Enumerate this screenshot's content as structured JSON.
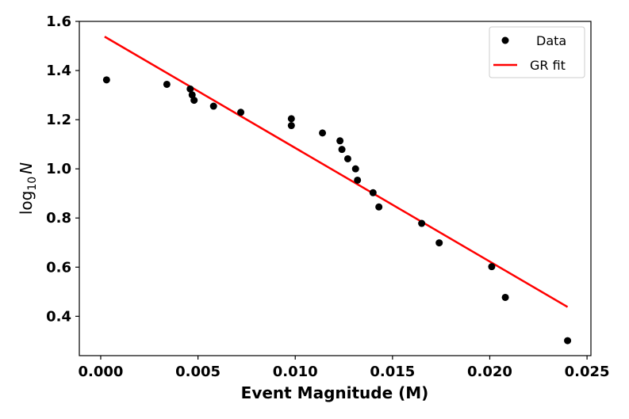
{
  "chart_data": {
    "type": "scatter",
    "title": "",
    "xlabel": "Event Magnitude (M)",
    "ylabel": {
      "base": "log",
      "subscript": "10",
      "var": "N"
    },
    "xlim": [
      -0.0011,
      0.0252
    ],
    "ylim": [
      0.24,
      1.6
    ],
    "xticks": [
      0.0,
      0.005,
      0.01,
      0.015,
      0.02,
      0.025
    ],
    "xtick_labels": [
      "0.000",
      "0.005",
      "0.010",
      "0.015",
      "0.020",
      "0.025"
    ],
    "yticks": [
      0.4,
      0.6,
      0.8,
      1.0,
      1.2,
      1.4,
      1.6
    ],
    "ytick_labels": [
      "0.4",
      "0.6",
      "0.8",
      "1.0",
      "1.2",
      "1.4",
      "1.6"
    ],
    "grid": false,
    "legend": {
      "placement": "top-right",
      "entries": [
        "Data",
        "GR fit"
      ]
    },
    "series": [
      {
        "name": "Data",
        "kind": "scatter",
        "color": "#000000",
        "points": [
          [
            0.0003,
            1.362
          ],
          [
            0.0034,
            1.344
          ],
          [
            0.0046,
            1.325
          ],
          [
            0.0047,
            1.301
          ],
          [
            0.0048,
            1.279
          ],
          [
            0.0058,
            1.255
          ],
          [
            0.0072,
            1.23
          ],
          [
            0.0098,
            1.204
          ],
          [
            0.0098,
            1.176
          ],
          [
            0.0114,
            1.146
          ],
          [
            0.0123,
            1.114
          ],
          [
            0.0124,
            1.079
          ],
          [
            0.0127,
            1.041
          ],
          [
            0.0131,
            1.0
          ],
          [
            0.0132,
            0.954
          ],
          [
            0.014,
            0.903
          ],
          [
            0.0143,
            0.845
          ],
          [
            0.0165,
            0.778
          ],
          [
            0.0174,
            0.699
          ],
          [
            0.0201,
            0.602
          ],
          [
            0.0208,
            0.477
          ],
          [
            0.024,
            0.301
          ]
        ]
      },
      {
        "name": "GR fit",
        "kind": "line",
        "color": "#ff0000",
        "points": [
          [
            0.0002,
            1.538
          ],
          [
            0.024,
            0.438
          ]
        ]
      }
    ]
  }
}
